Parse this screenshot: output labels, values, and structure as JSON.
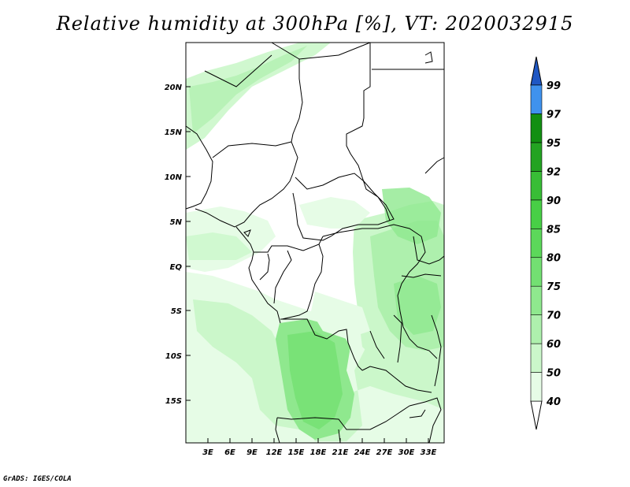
{
  "title": "Relative humidity at 300hPa [%], VT: 2020032915",
  "credit": "GrADS: IGES/COLA",
  "map": {
    "lat_labels": [
      "20N",
      "15N",
      "10N",
      "5N",
      "EQ",
      "5S",
      "10S",
      "15S"
    ],
    "lon_labels": [
      "3E",
      "6E",
      "9E",
      "12E",
      "15E",
      "18E",
      "21E",
      "24E",
      "27E",
      "30E",
      "33E"
    ]
  },
  "colorbar": {
    "levels": [
      "40",
      "50",
      "60",
      "70",
      "75",
      "80",
      "85",
      "90",
      "92",
      "95",
      "97",
      "99"
    ],
    "colors": [
      "#e6fce6",
      "#cbf7ca",
      "#aef0ad",
      "#8fe88e",
      "#73e072",
      "#5cd85a",
      "#48cf46",
      "#38bd36",
      "#23a322",
      "#128f12",
      "#3f92ee",
      "#2f74dc",
      "#1f57c4"
    ]
  }
}
